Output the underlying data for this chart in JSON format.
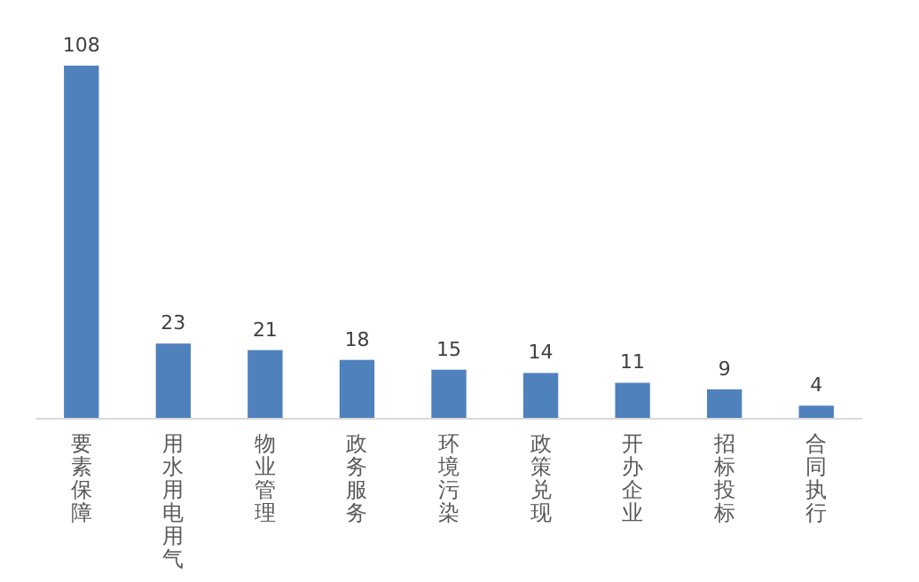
{
  "chart_data": {
    "type": "bar",
    "categories": [
      "要素保障",
      "用水用电用气",
      "物业管理",
      "政务服务",
      "环境污染",
      "政策兑现",
      "开办企业",
      "招标投标",
      "合同执行"
    ],
    "values": [
      108,
      23,
      21,
      18,
      15,
      14,
      11,
      9,
      4
    ],
    "color": "#4f81bd",
    "data_labels": true
  }
}
